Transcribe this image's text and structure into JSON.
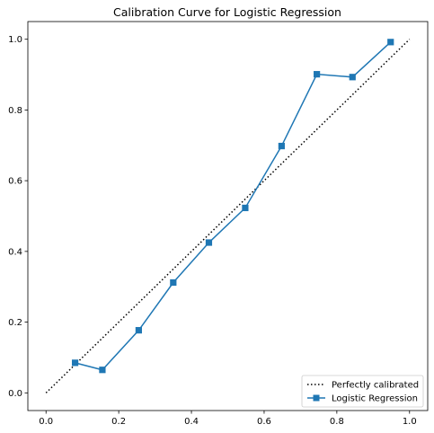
{
  "chart_data": {
    "type": "line",
    "title": "Calibration Curve for Logistic Regression",
    "xlabel": "",
    "ylabel": "",
    "xlim": [
      -0.05,
      1.05
    ],
    "ylim": [
      -0.05,
      1.05
    ],
    "xticks": [
      0.0,
      0.2,
      0.4,
      0.6,
      0.8,
      1.0
    ],
    "yticks": [
      0.0,
      0.2,
      0.4,
      0.6,
      0.8,
      1.0
    ],
    "xtick_labels": [
      "0.0",
      "0.2",
      "0.4",
      "0.6",
      "0.8",
      "1.0"
    ],
    "ytick_labels": [
      "0.0",
      "0.2",
      "0.4",
      "0.6",
      "0.8",
      "1.0"
    ],
    "grid": false,
    "legend_position": "bottom-right",
    "series": [
      {
        "name": "Perfectly calibrated",
        "style": "dotted",
        "color": "#000000",
        "marker": "none",
        "x": [
          0.0,
          1.0
        ],
        "y": [
          0.0,
          1.0
        ]
      },
      {
        "name": "Logistic Regression",
        "style": "solid",
        "color": "#1f77b4",
        "marker": "square",
        "x": [
          0.08,
          0.155,
          0.255,
          0.35,
          0.448,
          0.548,
          0.648,
          0.745,
          0.843,
          0.948
        ],
        "y": [
          0.085,
          0.065,
          0.177,
          0.312,
          0.425,
          0.523,
          0.698,
          0.901,
          0.893,
          0.992
        ]
      }
    ]
  }
}
